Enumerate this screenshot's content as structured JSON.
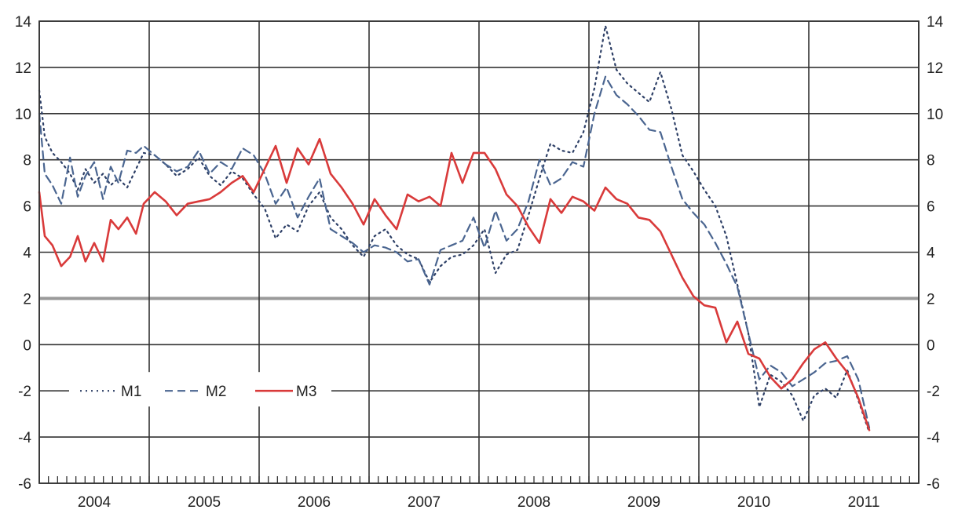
{
  "chart_data": {
    "type": "line",
    "title": "",
    "xlabel": "",
    "ylabel": "",
    "ylim": [
      -6,
      14
    ],
    "yticks": [
      14,
      12,
      10,
      8,
      6,
      4,
      2,
      0,
      -2,
      -4,
      -6
    ],
    "xlim": [
      2004.0,
      2012.0
    ],
    "x_tick_labels": [
      "2004",
      "2005",
      "2006",
      "2007",
      "2008",
      "2009",
      "2010",
      "2011"
    ],
    "grid": true,
    "dual_y_axis": true,
    "legend_position": "lower-left",
    "series": [
      {
        "name": "M1",
        "style": "dotted",
        "color": "#2d3f66",
        "x": [
          2004.0,
          2004.05,
          2004.12,
          2004.2,
          2004.28,
          2004.35,
          2004.42,
          2004.5,
          2004.58,
          2004.65,
          2004.72,
          2004.8,
          2004.88,
          2004.95,
          2005.05,
          2005.15,
          2005.25,
          2005.35,
          2005.45,
          2005.55,
          2005.65,
          2005.75,
          2005.85,
          2005.95,
          2006.05,
          2006.15,
          2006.25,
          2006.35,
          2006.45,
          2006.55,
          2006.65,
          2006.75,
          2006.85,
          2006.95,
          2007.05,
          2007.15,
          2007.25,
          2007.35,
          2007.45,
          2007.55,
          2007.65,
          2007.75,
          2007.85,
          2007.95,
          2008.05,
          2008.15,
          2008.25,
          2008.35,
          2008.45,
          2008.55,
          2008.65,
          2008.75,
          2008.85,
          2008.95,
          2009.05,
          2009.15,
          2009.25,
          2009.35,
          2009.45,
          2009.55,
          2009.65,
          2009.75,
          2009.85,
          2009.95,
          2010.05,
          2010.15,
          2010.25,
          2010.35,
          2010.45,
          2010.55,
          2010.65,
          2010.75,
          2010.85,
          2010.95,
          2011.05,
          2011.15,
          2011.25,
          2011.35,
          2011.45,
          2011.55
        ],
        "y": [
          11.0,
          9.0,
          8.3,
          7.9,
          7.4,
          6.7,
          7.6,
          7.0,
          7.4,
          6.9,
          7.2,
          6.8,
          7.6,
          8.3,
          8.2,
          7.8,
          7.3,
          7.6,
          8.1,
          7.3,
          6.9,
          7.5,
          7.2,
          6.5,
          5.9,
          4.6,
          5.2,
          4.9,
          6.0,
          6.6,
          5.5,
          5.0,
          4.3,
          3.8,
          4.7,
          5.0,
          4.3,
          3.9,
          3.7,
          2.7,
          3.4,
          3.8,
          3.9,
          4.3,
          5.0,
          3.1,
          3.9,
          4.1,
          5.6,
          7.2,
          8.7,
          8.4,
          8.3,
          9.2,
          11.1,
          13.8,
          11.9,
          11.3,
          10.9,
          10.5,
          11.8,
          10.2,
          8.2,
          7.5,
          6.7,
          6.0,
          4.7,
          2.6,
          0.5,
          -2.7,
          -1.3,
          -1.6,
          -2.2,
          -3.3,
          -2.2,
          -1.9,
          -2.3,
          -1.1,
          -2.4,
          -3.8
        ]
      },
      {
        "name": "M2",
        "style": "dashed",
        "color": "#4a6590",
        "x": [
          2004.0,
          2004.05,
          2004.12,
          2004.2,
          2004.28,
          2004.35,
          2004.42,
          2004.5,
          2004.58,
          2004.65,
          2004.72,
          2004.8,
          2004.88,
          2004.95,
          2005.05,
          2005.15,
          2005.25,
          2005.35,
          2005.45,
          2005.55,
          2005.65,
          2005.75,
          2005.85,
          2005.95,
          2006.05,
          2006.15,
          2006.25,
          2006.35,
          2006.45,
          2006.55,
          2006.65,
          2006.75,
          2006.85,
          2006.95,
          2007.05,
          2007.15,
          2007.25,
          2007.35,
          2007.45,
          2007.55,
          2007.65,
          2007.75,
          2007.85,
          2007.95,
          2008.05,
          2008.15,
          2008.25,
          2008.35,
          2008.45,
          2008.55,
          2008.65,
          2008.75,
          2008.85,
          2008.95,
          2009.05,
          2009.15,
          2009.25,
          2009.35,
          2009.45,
          2009.55,
          2009.65,
          2009.75,
          2009.85,
          2009.95,
          2010.05,
          2010.15,
          2010.25,
          2010.35,
          2010.45,
          2010.55,
          2010.65,
          2010.75,
          2010.85,
          2010.95,
          2011.05,
          2011.15,
          2011.25,
          2011.35,
          2011.45,
          2011.55
        ],
        "y": [
          10.0,
          7.4,
          6.9,
          6.1,
          8.1,
          6.4,
          7.3,
          7.9,
          6.3,
          7.7,
          7.0,
          8.4,
          8.3,
          8.6,
          8.2,
          7.8,
          7.5,
          7.7,
          8.4,
          7.4,
          7.9,
          7.6,
          8.5,
          8.2,
          7.4,
          6.1,
          6.8,
          5.5,
          6.4,
          7.2,
          5.0,
          4.7,
          4.4,
          4.0,
          4.3,
          4.2,
          4.0,
          3.6,
          3.7,
          2.6,
          4.1,
          4.3,
          4.5,
          5.5,
          4.2,
          5.8,
          4.5,
          5.0,
          6.2,
          8.0,
          6.9,
          7.2,
          7.9,
          7.7,
          10.0,
          11.6,
          10.8,
          10.4,
          9.9,
          9.3,
          9.2,
          7.7,
          6.3,
          5.7,
          5.2,
          4.4,
          3.5,
          2.5,
          0.5,
          -1.5,
          -0.9,
          -1.2,
          -1.8,
          -1.5,
          -1.2,
          -0.8,
          -0.7,
          -0.5,
          -1.5,
          -3.6
        ]
      },
      {
        "name": "M3",
        "style": "solid",
        "color": "#d93a3a",
        "x": [
          2004.0,
          2004.05,
          2004.12,
          2004.2,
          2004.28,
          2004.35,
          2004.42,
          2004.5,
          2004.58,
          2004.65,
          2004.72,
          2004.8,
          2004.88,
          2004.95,
          2005.05,
          2005.15,
          2005.25,
          2005.35,
          2005.45,
          2005.55,
          2005.65,
          2005.75,
          2005.85,
          2005.95,
          2006.05,
          2006.15,
          2006.25,
          2006.35,
          2006.45,
          2006.55,
          2006.65,
          2006.75,
          2006.85,
          2006.95,
          2007.05,
          2007.15,
          2007.25,
          2007.35,
          2007.45,
          2007.55,
          2007.65,
          2007.75,
          2007.85,
          2007.95,
          2008.05,
          2008.15,
          2008.25,
          2008.35,
          2008.45,
          2008.55,
          2008.65,
          2008.75,
          2008.85,
          2008.95,
          2009.05,
          2009.15,
          2009.25,
          2009.35,
          2009.45,
          2009.55,
          2009.65,
          2009.75,
          2009.85,
          2009.95,
          2010.05,
          2010.15,
          2010.25,
          2010.35,
          2010.45,
          2010.55,
          2010.65,
          2010.75,
          2010.85,
          2010.95,
          2011.05,
          2011.15,
          2011.25,
          2011.35,
          2011.45,
          2011.55
        ],
        "y": [
          6.6,
          4.7,
          4.3,
          3.4,
          3.8,
          4.7,
          3.6,
          4.4,
          3.6,
          5.4,
          5.0,
          5.5,
          4.8,
          6.1,
          6.6,
          6.2,
          5.6,
          6.1,
          6.2,
          6.3,
          6.6,
          7.0,
          7.3,
          6.6,
          7.6,
          8.6,
          7.0,
          8.5,
          7.8,
          8.9,
          7.4,
          6.8,
          6.1,
          5.2,
          6.3,
          5.6,
          5.0,
          6.5,
          6.2,
          6.4,
          6.0,
          8.3,
          7.0,
          8.3,
          8.3,
          7.6,
          6.5,
          6.0,
          5.1,
          4.4,
          6.3,
          5.7,
          6.4,
          6.2,
          5.8,
          6.8,
          6.3,
          6.1,
          5.5,
          5.4,
          4.9,
          3.9,
          2.9,
          2.1,
          1.7,
          1.6,
          0.1,
          1.0,
          -0.4,
          -0.6,
          -1.4,
          -1.9,
          -1.5,
          -0.8,
          -0.2,
          0.1,
          -0.6,
          -1.2,
          -2.3,
          -3.7
        ]
      }
    ]
  }
}
